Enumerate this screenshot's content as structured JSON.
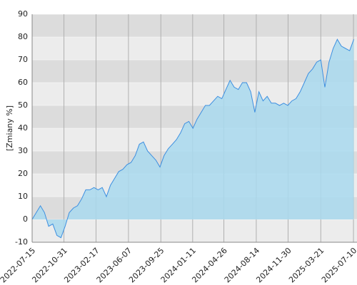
{
  "chart_data": {
    "type": "area",
    "y_label": "[Zmiany %]",
    "x": [
      "2022-07-15",
      "2022-07-29",
      "2022-08-12",
      "2022-08-26",
      "2022-09-09",
      "2022-09-23",
      "2022-10-07",
      "2022-10-21",
      "2022-11-04",
      "2022-11-18",
      "2022-12-02",
      "2022-12-16",
      "2022-12-30",
      "2023-01-13",
      "2023-01-27",
      "2023-02-10",
      "2023-02-24",
      "2023-03-10",
      "2023-03-24",
      "2023-04-07",
      "2023-04-21",
      "2023-05-05",
      "2023-05-19",
      "2023-06-02",
      "2023-06-16",
      "2023-06-30",
      "2023-07-14",
      "2023-07-28",
      "2023-08-11",
      "2023-08-25",
      "2023-09-08",
      "2023-09-22",
      "2023-10-06",
      "2023-10-20",
      "2023-11-03",
      "2023-11-17",
      "2023-12-01",
      "2023-12-15",
      "2023-12-29",
      "2024-01-12",
      "2024-01-26",
      "2024-02-09",
      "2024-02-23",
      "2024-03-08",
      "2024-03-22",
      "2024-04-05",
      "2024-04-19",
      "2024-05-03",
      "2024-05-17",
      "2024-05-31",
      "2024-06-14",
      "2024-06-28",
      "2024-07-12",
      "2024-07-26",
      "2024-08-09",
      "2024-08-23",
      "2024-09-06",
      "2024-09-20",
      "2024-10-04",
      "2024-10-18",
      "2024-11-01",
      "2024-11-15",
      "2024-11-29",
      "2024-12-13",
      "2024-12-27",
      "2025-01-10",
      "2025-01-24",
      "2025-02-07",
      "2025-02-21",
      "2025-03-07",
      "2025-03-21",
      "2025-04-04",
      "2025-04-18",
      "2025-05-02",
      "2025-05-16",
      "2025-05-30",
      "2025-06-13",
      "2025-06-27",
      "2025-07-11"
    ],
    "values": [
      0,
      3,
      6,
      3,
      -3,
      -2,
      -7,
      -8,
      -3,
      3,
      5,
      6,
      9,
      13,
      13,
      14,
      13,
      14,
      10,
      15,
      18,
      21,
      22,
      24,
      25,
      28,
      33,
      34,
      30,
      28,
      26,
      23,
      28,
      31,
      33,
      35,
      38,
      42,
      43,
      40,
      44,
      47,
      50,
      50,
      52,
      54,
      53,
      57,
      61,
      58,
      57,
      60,
      60,
      56,
      47,
      56,
      52,
      54,
      51,
      51,
      50,
      51,
      50,
      52,
      53,
      56,
      60,
      64,
      66,
      69,
      70,
      58,
      69,
      75,
      79,
      76,
      75,
      74,
      79
    ],
    "color": "#3d8fe0",
    "fill": "#a9d9ee",
    "xlim": [
      "2022-07-15",
      "2025-07-22"
    ],
    "xticks": [
      "2022-07-15",
      "2022-10-31",
      "2023-02-17",
      "2023-06-07",
      "2023-09-25",
      "2024-01-11",
      "2024-04-26",
      "2024-08-14",
      "2024-11-30",
      "2025-03-21",
      "2025-07-10"
    ],
    "ylim": [
      -10,
      90
    ],
    "yticks": [
      -10,
      0,
      10,
      20,
      30,
      40,
      50,
      60,
      70,
      80,
      90
    ],
    "grid": true
  }
}
